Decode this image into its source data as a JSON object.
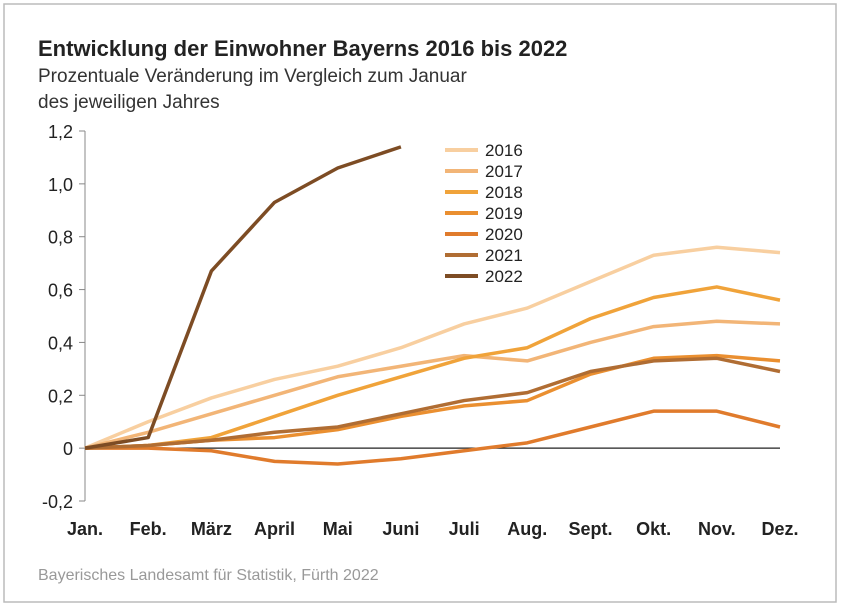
{
  "chart_data": {
    "type": "line",
    "title": "Entwicklung der Einwohner Bayerns 2016 bis 2022",
    "subtitle": [
      "Prozentuale Veränderung im Vergleich zum Januar",
      "des jeweiligen Jahres"
    ],
    "source": "Bayerisches Landesamt für Statistik, Fürth 2022",
    "categories": [
      "Jan.",
      "Feb.",
      "März",
      "April",
      "Mai",
      "Juni",
      "Juli",
      "Aug.",
      "Sept.",
      "Okt.",
      "Nov.",
      "Dez."
    ],
    "series": [
      {
        "name": "2016",
        "color": "#f8cfa0",
        "values": [
          0,
          0.1,
          0.19,
          0.26,
          0.31,
          0.38,
          0.47,
          0.53,
          0.63,
          0.73,
          0.76,
          0.74
        ]
      },
      {
        "name": "2017",
        "color": "#f2b577",
        "values": [
          0,
          0.06,
          0.13,
          0.2,
          0.27,
          0.31,
          0.35,
          0.33,
          0.4,
          0.46,
          0.48,
          0.47
        ]
      },
      {
        "name": "2018",
        "color": "#f0a33a",
        "values": [
          0,
          0.01,
          0.04,
          0.12,
          0.2,
          0.27,
          0.34,
          0.38,
          0.49,
          0.57,
          0.61,
          0.56
        ]
      },
      {
        "name": "2019",
        "color": "#ea8f30",
        "values": [
          0,
          0.01,
          0.03,
          0.04,
          0.07,
          0.12,
          0.16,
          0.18,
          0.28,
          0.34,
          0.35,
          0.33
        ]
      },
      {
        "name": "2020",
        "color": "#e07b2c",
        "values": [
          0,
          0,
          -0.01,
          -0.05,
          -0.06,
          -0.04,
          -0.01,
          0.02,
          0.08,
          0.14,
          0.14,
          0.08
        ]
      },
      {
        "name": "2021",
        "color": "#b06d33",
        "values": [
          0,
          0.01,
          0.03,
          0.06,
          0.08,
          0.13,
          0.18,
          0.21,
          0.29,
          0.33,
          0.34,
          0.29
        ]
      },
      {
        "name": "2022",
        "color": "#7d4c24",
        "values": [
          0,
          0.04,
          0.67,
          0.93,
          1.06,
          1.14,
          null,
          null,
          null,
          null,
          null,
          null
        ]
      }
    ],
    "ylim": [
      -0.2,
      1.2
    ],
    "yticks": [
      {
        "value": -0.2,
        "label": "-0,2"
      },
      0,
      {
        "value": 0.2,
        "label": "0,2"
      },
      {
        "value": 0.4,
        "label": "0,4"
      },
      {
        "value": 0.6,
        "label": "0,6"
      },
      {
        "value": 0.8,
        "label": "0,8"
      },
      {
        "value": 1.0,
        "label": "1,0"
      },
      {
        "value": 1.2,
        "label": "1,2"
      }
    ],
    "grid": false,
    "legend": "top"
  }
}
